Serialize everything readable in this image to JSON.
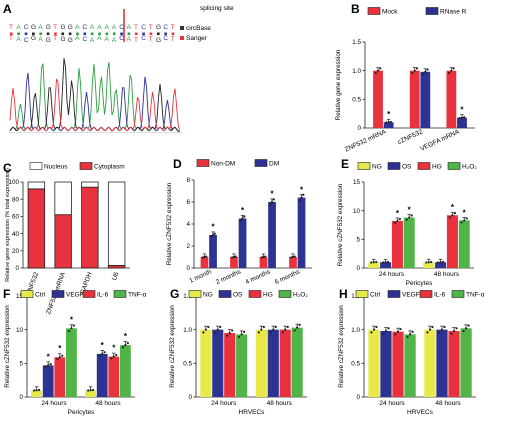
{
  "colors": {
    "red": "#e8333e",
    "blue": "#2c3393",
    "yellow": "#e7e94a",
    "green": "#51b447",
    "white": "#ffffff",
    "black": "#222222"
  },
  "panelA": {
    "letter": "A",
    "seq_top": "TACGAGTGGACAAAACATCTGCT",
    "seq_bottom": "TACGAGTGGACAAAACATCTGCT",
    "label_top": "circBase",
    "label_bottom": "Sanger",
    "splicing_label": "splicing site"
  },
  "panels": [
    {
      "id": "B",
      "letter": "B",
      "chart_data": {
        "type": "bar",
        "ylabel": "Relative gene expression",
        "ylim": [
          0,
          1.5
        ],
        "yticks": [
          "0",
          "0.5",
          "1.0",
          "1.5"
        ],
        "categories": [
          "ZNF532 mRNA",
          "cZNF532",
          "VEGFA mRNA"
        ],
        "legend": [
          "Mock",
          "RNase R"
        ],
        "series": [
          {
            "name": "Mock",
            "color": "#e8333e",
            "values": [
              1.0,
              1.0,
              1.0
            ]
          },
          {
            "name": "RNase R",
            "color": "#2c3393",
            "values": [
              0.1,
              0.98,
              0.18
            ]
          }
        ],
        "significance": [
          [
            0,
            1
          ],
          [
            2,
            1
          ]
        ]
      }
    },
    {
      "id": "C",
      "letter": "C",
      "chart_data": {
        "type": "bar",
        "stacked": true,
        "ylabel": "Relative gene expression (% total expression)",
        "ylim": [
          0,
          100
        ],
        "yticks": [
          "0",
          "20",
          "40",
          "60",
          "80",
          "100"
        ],
        "categories": [
          "cZNF532",
          "ZNF532 mRNA",
          "GAPDH",
          "U6"
        ],
        "legend": [
          "Nucleus",
          "Cytoplasm"
        ],
        "series": [
          {
            "name": "Cytoplasm",
            "color": "#e8333e",
            "values": [
              92,
              62,
              94,
              3
            ]
          },
          {
            "name": "Nucleus",
            "color": "#ffffff",
            "values": [
              8,
              38,
              6,
              97
            ]
          }
        ]
      }
    },
    {
      "id": "D",
      "letter": "D",
      "chart_data": {
        "type": "bar",
        "ylabel": "Relative cZNF532 expression",
        "ylim": [
          0,
          8
        ],
        "yticks": [
          "0",
          "2",
          "4",
          "6",
          "8"
        ],
        "categories": [
          "1 month",
          "2 months",
          "4 months",
          "6 months"
        ],
        "legend": [
          "Non-DM",
          "DM"
        ],
        "series": [
          {
            "name": "Non-DM",
            "color": "#e8333e",
            "values": [
              1.0,
              1.0,
              1.0,
              1.0
            ]
          },
          {
            "name": "DM",
            "color": "#2c3393",
            "values": [
              3.0,
              4.5,
              6.0,
              6.4
            ]
          }
        ],
        "significance": [
          [
            0,
            1
          ],
          [
            1,
            1
          ],
          [
            2,
            1
          ],
          [
            3,
            1
          ]
        ]
      }
    },
    {
      "id": "E",
      "letter": "E",
      "chart_data": {
        "type": "bar",
        "ylabel": "Relative cZNF532 expression",
        "xlabel": "Pericytes",
        "ylim": [
          0,
          15
        ],
        "yticks": [
          "0",
          "5",
          "10",
          "15"
        ],
        "categories": [
          "24 hours",
          "48 hours"
        ],
        "legend": [
          "NG",
          "OS",
          "HG",
          "H₂O₂"
        ],
        "series": [
          {
            "name": "NG",
            "color": "#e7e94a",
            "values": [
              1.0,
              1.0
            ]
          },
          {
            "name": "OS",
            "color": "#2c3393",
            "values": [
              1.0,
              1.0
            ]
          },
          {
            "name": "HG",
            "color": "#e8333e",
            "values": [
              8.2,
              9.2
            ]
          },
          {
            "name": "H₂O₂",
            "color": "#51b447",
            "values": [
              8.8,
              8.3
            ]
          }
        ],
        "significance": [
          [
            0,
            2
          ],
          [
            0,
            3
          ],
          [
            1,
            2
          ],
          [
            1,
            3
          ]
        ]
      }
    },
    {
      "id": "F",
      "letter": "F",
      "chart_data": {
        "type": "bar",
        "ylabel": "Relative cZNF532 expression",
        "xlabel": "Pericytes",
        "ylim": [
          0,
          15
        ],
        "yticks": [
          "0",
          "5",
          "10",
          "15"
        ],
        "categories": [
          "24 hours",
          "48 hours"
        ],
        "legend": [
          "Ctrl",
          "VEGF",
          "IL-6",
          "TNF-α"
        ],
        "series": [
          {
            "name": "Ctrl",
            "color": "#e7e94a",
            "values": [
              1.0,
              1.0
            ]
          },
          {
            "name": "VEGF",
            "color": "#2c3393",
            "values": [
              4.7,
              6.4
            ]
          },
          {
            "name": "IL-6",
            "color": "#e8333e",
            "values": [
              5.9,
              6.0
            ]
          },
          {
            "name": "TNF-α",
            "color": "#51b447",
            "values": [
              10.2,
              7.7
            ]
          }
        ],
        "significance": [
          [
            0,
            1
          ],
          [
            0,
            2
          ],
          [
            0,
            3
          ],
          [
            1,
            1
          ],
          [
            1,
            2
          ],
          [
            1,
            3
          ]
        ]
      }
    },
    {
      "id": "G",
      "letter": "G",
      "chart_data": {
        "type": "bar",
        "ylabel": "Relative cZNF532 expression",
        "xlabel": "HRVECs",
        "ylim": [
          0,
          1.5
        ],
        "yticks": [
          "0",
          "0.5",
          "1.0",
          "1.5"
        ],
        "categories": [
          "24 hours",
          "48 hours"
        ],
        "legend": [
          "NG",
          "OS",
          "HG",
          "H₂O₂"
        ],
        "series": [
          {
            "name": "NG",
            "color": "#e7e94a",
            "values": [
              1.0,
              1.0
            ]
          },
          {
            "name": "OS",
            "color": "#2c3393",
            "values": [
              1.0,
              1.0
            ]
          },
          {
            "name": "HG",
            "color": "#e8333e",
            "values": [
              0.95,
              1.0
            ]
          },
          {
            "name": "H₂O₂",
            "color": "#51b447",
            "values": [
              0.93,
              1.03
            ]
          }
        ]
      }
    },
    {
      "id": "H",
      "letter": "H",
      "chart_data": {
        "type": "bar",
        "ylabel": "Relative cZNF532 expression",
        "xlabel": "HRVECs",
        "ylim": [
          0,
          1.5
        ],
        "yticks": [
          "0",
          "0.5",
          "1.0",
          "1.5"
        ],
        "categories": [
          "24 hours",
          "48 hours"
        ],
        "legend": [
          "Ctrl",
          "VEGF",
          "IL-6",
          "TNF-α"
        ],
        "series": [
          {
            "name": "Ctrl",
            "color": "#e7e94a",
            "values": [
              1.0,
              1.0
            ]
          },
          {
            "name": "VEGF",
            "color": "#2c3393",
            "values": [
              0.98,
              1.0
            ]
          },
          {
            "name": "IL-6",
            "color": "#e8333e",
            "values": [
              0.97,
              0.98
            ]
          },
          {
            "name": "TNF-α",
            "color": "#51b447",
            "values": [
              0.93,
              1.02
            ]
          }
        ]
      }
    }
  ]
}
